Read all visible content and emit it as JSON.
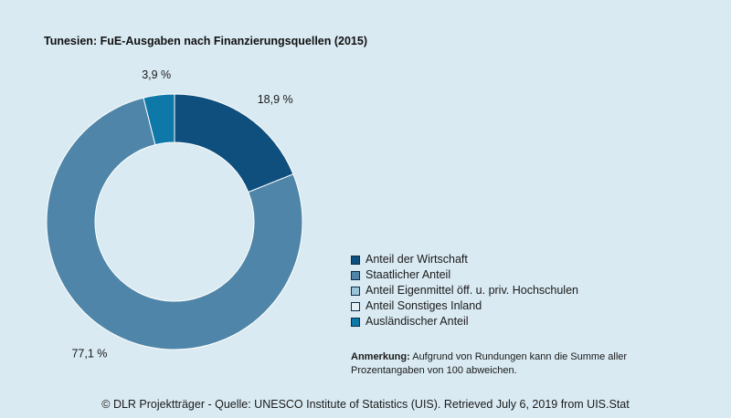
{
  "chart_data": {
    "type": "pie",
    "title": "Tunesien: FuE-Ausgaben nach Finanzierungsquellen (2015)",
    "slices": [
      {
        "name": "Anteil der Wirtschaft",
        "value": 18.9,
        "label": "18,9 %",
        "color": "#0e4f7e"
      },
      {
        "name": "Staatlicher Anteil",
        "value": 77.1,
        "label": "77,1 %",
        "color": "#4f85a8"
      },
      {
        "name": "Anteil Eigenmittel öff. u. priv. Hochschulen",
        "value": 0,
        "label": "",
        "color": "#9cc4d8"
      },
      {
        "name": "Anteil Sonstiges Inland",
        "value": 0,
        "label": "",
        "color": "#e4eff5"
      },
      {
        "name": "Ausländischer Anteil",
        "value": 3.9,
        "label": "3,9 %",
        "color": "#0e78a8"
      }
    ],
    "legend_position": "bottom-right"
  },
  "note": {
    "label": "Anmerkung:",
    "text": " Aufgrund von Rundungen kann die Summe aller Prozentangaben von 100 abweichen."
  },
  "source": "© DLR Projektträger - Quelle: UNESCO Institute of Statistics (UIS). Retrieved July 6, 2019 from UIS.Stat"
}
